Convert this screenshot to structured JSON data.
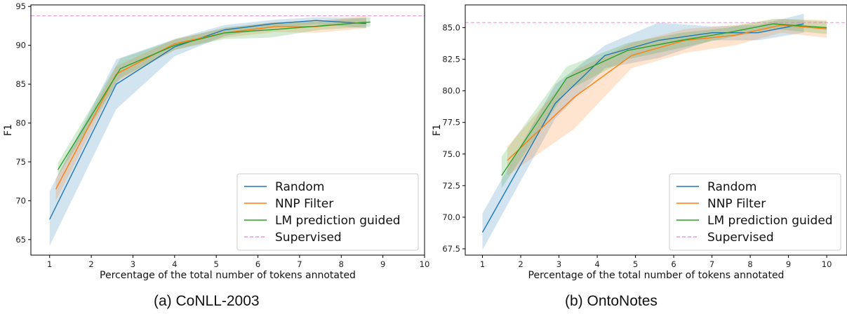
{
  "chart_data": [
    {
      "type": "line",
      "xlabel": "Percentage of the total number of tokens annotated",
      "ylabel": "F1",
      "xlim": [
        0.55,
        10.0
      ],
      "ylim": [
        63.0,
        95.2
      ],
      "xticks": [
        1,
        2,
        3,
        4,
        5,
        6,
        7,
        8,
        9,
        10
      ],
      "yticks": [
        65,
        70,
        75,
        80,
        85,
        90,
        95
      ],
      "legend_position": "lower-right",
      "series": [
        {
          "name": "Random",
          "color": "#1f77b4",
          "style": "solid",
          "x": [
            1.0,
            2.6,
            4.0,
            5.2,
            6.4,
            7.4,
            8.6
          ],
          "y": [
            67.6,
            85.0,
            89.8,
            92.0,
            92.8,
            93.2,
            92.8
          ],
          "lower": [
            64.2,
            81.8,
            88.6,
            91.2,
            92.3,
            92.7,
            92.2
          ],
          "upper": [
            71.2,
            88.2,
            90.8,
            92.6,
            93.3,
            93.6,
            93.5
          ]
        },
        {
          "name": "NNP Filter",
          "color": "#ff7f0e",
          "style": "solid",
          "x": [
            1.15,
            2.6,
            4.0,
            5.2,
            6.4,
            7.4,
            8.6
          ],
          "y": [
            71.5,
            86.3,
            90.2,
            91.6,
            92.4,
            92.4,
            93.0
          ],
          "lower": [
            70.0,
            85.3,
            89.4,
            91.0,
            91.7,
            91.6,
            92.2
          ],
          "upper": [
            72.8,
            87.3,
            90.8,
            92.2,
            93.0,
            93.1,
            93.8
          ]
        },
        {
          "name": "LM prediction guided",
          "color": "#2ca02c",
          "style": "solid",
          "x": [
            1.2,
            2.7,
            4.0,
            5.2,
            6.3,
            7.5,
            8.7
          ],
          "y": [
            74.0,
            87.0,
            90.0,
            91.6,
            92.0,
            92.5,
            93.0
          ],
          "lower": [
            73.2,
            85.8,
            89.4,
            90.8,
            91.0,
            92.0,
            92.4
          ],
          "upper": [
            74.9,
            88.3,
            90.7,
            92.3,
            92.9,
            93.1,
            93.6
          ]
        },
        {
          "name": "Supervised",
          "color": "#e377c2",
          "style": "dashed",
          "hline": 93.8
        }
      ]
    },
    {
      "type": "line",
      "xlabel": "Percentage of the total number of tokens annotated",
      "ylabel": "F1",
      "xlim": [
        0.55,
        10.53
      ],
      "ylim": [
        67.0,
        86.8
      ],
      "xticks": [
        1,
        2,
        3,
        4,
        5,
        6,
        7,
        8,
        9,
        10
      ],
      "yticks": [
        67.5,
        70.0,
        72.5,
        75.0,
        77.5,
        80.0,
        82.5,
        85.0
      ],
      "legend_position": "lower-right",
      "series": [
        {
          "name": "Random",
          "color": "#1f77b4",
          "style": "solid",
          "x": [
            1.0,
            2.9,
            4.2,
            5.6,
            7.0,
            8.2,
            9.4
          ],
          "y": [
            68.8,
            79.0,
            82.8,
            84.0,
            84.6,
            84.6,
            85.3
          ],
          "lower": [
            67.4,
            77.8,
            81.8,
            82.6,
            84.0,
            84.0,
            84.6
          ],
          "upper": [
            70.3,
            80.5,
            83.6,
            85.4,
            85.1,
            85.2,
            86.1
          ]
        },
        {
          "name": "NNP Filter",
          "color": "#ff7f0e",
          "style": "solid",
          "x": [
            1.65,
            3.4,
            4.9,
            6.3,
            7.6,
            8.8,
            10.0
          ],
          "y": [
            74.5,
            79.5,
            82.8,
            84.0,
            84.4,
            85.2,
            84.9
          ],
          "lower": [
            73.3,
            77.0,
            81.8,
            83.0,
            83.6,
            84.6,
            84.2
          ],
          "upper": [
            75.6,
            81.6,
            83.8,
            84.9,
            85.2,
            85.7,
            85.6
          ]
        },
        {
          "name": "LM prediction guided",
          "color": "#2ca02c",
          "style": "solid",
          "x": [
            1.5,
            3.2,
            4.8,
            6.2,
            7.4,
            8.6,
            10.0
          ],
          "y": [
            73.3,
            81.0,
            83.2,
            84.0,
            84.6,
            85.3,
            85.0
          ],
          "lower": [
            72.3,
            80.0,
            82.5,
            83.4,
            84.2,
            84.9,
            84.5
          ],
          "upper": [
            74.8,
            81.9,
            83.8,
            84.6,
            85.0,
            85.7,
            85.5
          ]
        },
        {
          "name": "Supervised",
          "color": "#e377c2",
          "style": "dashed",
          "hline": 85.4
        }
      ]
    }
  ],
  "captions": {
    "left": "(a) CoNLL-2003",
    "right": "(b) OntoNotes"
  }
}
